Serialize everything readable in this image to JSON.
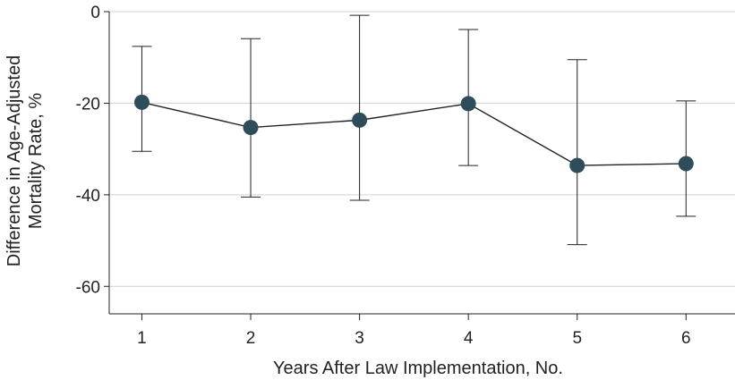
{
  "chart_data": {
    "type": "line",
    "xlabel": "Years After Law Implementation, No.",
    "ylabel_lines": [
      "Difference in Age-Adjusted",
      "Mortality Rate, %"
    ],
    "x": [
      1,
      2,
      3,
      4,
      5,
      6
    ],
    "y": [
      -19.8,
      -25.3,
      -23.7,
      -20.1,
      -33.6,
      -33.2
    ],
    "ci_lower": [
      -30.5,
      -40.5,
      -41.2,
      -33.6,
      -50.9,
      -44.7
    ],
    "ci_upper": [
      -7.6,
      -5.9,
      -0.8,
      -3.9,
      -10.5,
      -19.5
    ],
    "yticks": [
      0,
      -20,
      -40,
      -60
    ],
    "ytick_labels": [
      "0",
      "-20",
      "-40",
      "-60"
    ],
    "xticks": [
      1,
      2,
      3,
      4,
      5,
      6
    ],
    "xtick_labels": [
      "1",
      "2",
      "3",
      "4",
      "5",
      "6"
    ],
    "ylim": [
      -66,
      0
    ],
    "xlim": [
      0.7,
      6.45
    ],
    "grid": true,
    "marker_color": "#2d4d5a",
    "line_color": "#222222"
  }
}
